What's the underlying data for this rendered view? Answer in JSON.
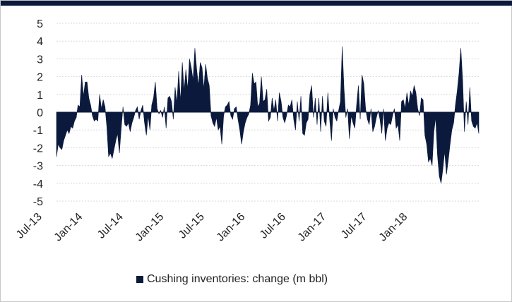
{
  "chart_data": {
    "type": "area",
    "title": "",
    "xlabel": "",
    "ylabel": "",
    "ylim": [
      -5,
      5
    ],
    "yticks": [
      "5",
      "4",
      "3",
      "2",
      "1",
      "0",
      "-1",
      "-2",
      "-3",
      "-4",
      "-5"
    ],
    "xticks": [
      "Jul-13",
      "Jan-14",
      "Jul-14",
      "Jan-15",
      "Jul-15",
      "Jan-16",
      "Jul-16",
      "Jan-17",
      "Jul-17",
      "Jan-18"
    ],
    "grid": true,
    "legend_position": "bottom",
    "series": [
      {
        "name": "Cushing inventories: change (m bbl)",
        "color": "#0b1a3c",
        "x_start": "2013-07-05",
        "interval": "weekly",
        "values": [
          -2.5,
          -1.8,
          -2.0,
          -2.1,
          -1.6,
          -1.3,
          -1.0,
          -1.2,
          -0.8,
          -0.9,
          -0.5,
          -0.3,
          0.4,
          0.3,
          2.1,
          0.9,
          1.7,
          1.7,
          0.8,
          0.4,
          -0.2,
          -0.5,
          -0.4,
          -0.5,
          1.0,
          0.2,
          0.7,
          0.3,
          -0.8,
          -2.5,
          -2.3,
          -2.6,
          -2.1,
          -1.6,
          -1.2,
          -2.3,
          -0.9,
          0.3,
          -0.7,
          -0.8,
          -0.6,
          -1.1,
          -0.6,
          -0.3,
          0.1,
          0.3,
          -0.4,
          0.1,
          0.4,
          -0.6,
          -1.3,
          -0.2,
          -1.0,
          0.4,
          0.8,
          1.7,
          0.2,
          -0.1,
          0.1,
          -0.3,
          0.3,
          -0.9,
          0.8,
          0.9,
          0.6,
          -0.4,
          1.4,
          0.5,
          2.3,
          0.6,
          2.8,
          1.2,
          2.4,
          1.3,
          3.0,
          2.5,
          1.8,
          3.6,
          2.4,
          1.5,
          2.8,
          2.5,
          1.3,
          2.7,
          1.9,
          1.5,
          -0.2,
          -0.6,
          -0.8,
          -0.3,
          -1.0,
          -0.8,
          -1.8,
          -0.2,
          0.3,
          0.4,
          0.6,
          -0.2,
          -0.4,
          0.2,
          0.3,
          -0.4,
          -1.0,
          -1.8,
          -1.1,
          -0.6,
          -0.3,
          -0.1,
          0.4,
          2.2,
          1.6,
          1.7,
          0.3,
          0.5,
          2.0,
          0.6,
          0.7,
          1.3,
          -0.5,
          -0.3,
          0.8,
          0.1,
          0.7,
          -0.5,
          1.1,
          0.6,
          -0.3,
          -0.6,
          -0.2,
          0.4,
          0.3,
          0.7,
          -0.4,
          -1.0,
          0.6,
          -0.5,
          0.9,
          -1.2,
          -1.3,
          -0.6,
          -0.4,
          1.0,
          1.5,
          -0.3,
          0.8,
          -0.7,
          0.8,
          -1.1,
          0.9,
          -0.5,
          -0.8,
          1.1,
          -0.4,
          -1.6,
          0.2,
          -0.3,
          -0.5,
          0.1,
          0.6,
          3.7,
          1.3,
          -0.3,
          0.2,
          -1.5,
          -0.2,
          -0.6,
          -0.9,
          0.4,
          1.5,
          -0.4,
          2.1,
          1.6,
          0.2,
          -0.4,
          -0.7,
          0.2,
          -1.1,
          -0.8,
          -0.3,
          0.1,
          -0.4,
          -1.2,
          0.2,
          -1.6,
          -0.9,
          -0.6,
          -0.7,
          -0.2,
          0.2,
          -0.9,
          -0.7,
          -1.6,
          0.6,
          0.7,
          0.2,
          1.1,
          0.4,
          1.2,
          0.9,
          1.5,
          1.1,
          0.2,
          -0.2,
          0.8,
          0.7,
          -1.3,
          -1.8,
          -2.8,
          -2.6,
          -3.0,
          -1.1,
          -0.3,
          -2.4,
          -3.6,
          -4.0,
          -3.2,
          -2.2,
          -3.5,
          -2.7,
          -1.8,
          -1.0,
          -0.6,
          0.4,
          1.2,
          2.2,
          3.6,
          1.8,
          -1.1,
          0.6,
          -0.7,
          1.4,
          -0.5,
          -0.8,
          -0.9,
          -0.6,
          -1.2
        ]
      }
    ]
  }
}
